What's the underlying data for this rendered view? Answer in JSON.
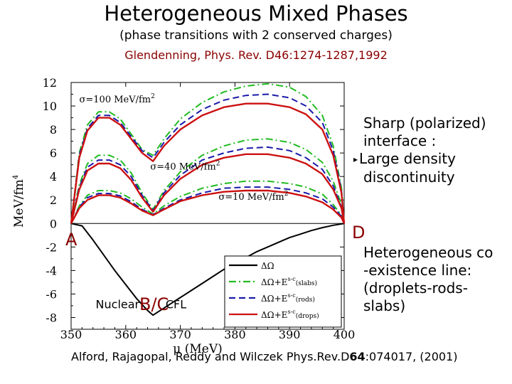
{
  "title": "Heterogeneous Mixed Phases",
  "subtitle": "(phase transitions with 2 conserved charges)",
  "citation_top": "Glendenning, Phys. Rev. D46:1274-1287,1992",
  "citation_bottom": {
    "authors": "Alford, Rajagopal, Reddy and Wilczek  Phys.Rev.D",
    "volume": "64",
    "pages": ":074017, (2001)"
  },
  "notes": {
    "sharp": [
      "Sharp (polarized)",
      "interface :",
      "Large density",
      "discontinuity"
    ],
    "hetero": [
      "Heterogeneous co",
      "-existence line:",
      "(droplets-rods-",
      "slabs)"
    ]
  },
  "point_labels": {
    "A": "A",
    "BC": "B/C",
    "D": "D"
  },
  "colors": {
    "black": "#000000",
    "green": "#22bb22",
    "blue": "#1a1aaa",
    "red": "#cc1111",
    "marker": "#8b0000"
  },
  "chart_data": {
    "type": "line",
    "xlabel": "μ (MeV)",
    "ylabel": "MeV/fm",
    "ylabel_power": "4",
    "xlim": [
      350,
      400
    ],
    "ylim": [
      -9,
      12
    ],
    "xticks": [
      350,
      360,
      370,
      380,
      390,
      400
    ],
    "yticks": [
      -8,
      -6,
      -4,
      -2,
      0,
      2,
      4,
      6,
      8,
      10,
      12
    ],
    "annotations": [
      {
        "text": "σ=100 MeV/fm",
        "sup": "2",
        "x": 351.5,
        "y": 10.3
      },
      {
        "text": "σ=40 MeV/fm",
        "sup": "2",
        "x": 364.5,
        "y": 4.6
      },
      {
        "text": "σ=10 MeV/fm",
        "sup": "2",
        "x": 377,
        "y": 2.0
      },
      {
        "text": "Nuclear",
        "sup": "",
        "x": 354.5,
        "y": -7.2
      },
      {
        "text": "CFL",
        "sup": "",
        "x": 367.3,
        "y": -7.2
      }
    ],
    "legend": {
      "position": "bottom-right",
      "entries": [
        {
          "label": "ΔΩ",
          "sup": "",
          "paren": "",
          "color": "#000000",
          "dash": "solid"
        },
        {
          "label": "ΔΩ+E",
          "sup": "s-c",
          "paren": "(slabs)",
          "color": "#22bb22",
          "dash": "dashdot"
        },
        {
          "label": "ΔΩ+E",
          "sup": "s-c",
          "paren": "(rods)",
          "color": "#1a1aaa",
          "dash": "dash"
        },
        {
          "label": "ΔΩ+E",
          "sup": "s-c",
          "paren": "(drops)",
          "color": "#cc1111",
          "dash": "solid"
        }
      ]
    },
    "series": [
      {
        "name": "ΔΩ",
        "color": "#000000",
        "dash": "solid",
        "width": 2,
        "x": [
          350,
          352,
          354,
          356,
          358,
          360,
          362,
          364,
          365,
          366,
          368,
          370,
          372,
          374,
          376,
          378,
          380,
          382,
          384,
          386,
          388,
          390,
          392,
          394,
          396,
          398,
          400
        ],
        "y": [
          0,
          -0.2,
          -1.4,
          -2.7,
          -4.0,
          -5.2,
          -6.4,
          -7.4,
          -7.8,
          -7.5,
          -6.9,
          -6.3,
          -5.7,
          -5.1,
          -4.5,
          -3.9,
          -3.4,
          -2.9,
          -2.4,
          -2.0,
          -1.6,
          -1.2,
          -0.9,
          -0.6,
          -0.35,
          -0.15,
          0
        ]
      },
      {
        "name": "σ=10 slabs",
        "color": "#22bb22",
        "dash": "dashdot",
        "width": 2,
        "x": [
          350,
          351.5,
          353,
          355,
          357,
          359,
          361,
          363,
          365,
          367,
          370,
          374,
          378,
          382,
          386,
          390,
          393,
          396,
          398,
          399.5,
          400
        ],
        "y": [
          0,
          1.5,
          2.4,
          2.8,
          2.8,
          2.6,
          2.1,
          1.4,
          0.8,
          1.5,
          2.3,
          3.0,
          3.4,
          3.6,
          3.6,
          3.4,
          3.1,
          2.5,
          1.6,
          0.7,
          0
        ]
      },
      {
        "name": "σ=10 rods",
        "color": "#1a1aaa",
        "dash": "dash",
        "width": 2,
        "x": [
          350,
          351.5,
          353,
          355,
          357,
          359,
          361,
          363,
          365,
          367,
          370,
          374,
          378,
          382,
          386,
          390,
          393,
          396,
          398,
          399.5,
          400
        ],
        "y": [
          0,
          1.4,
          2.2,
          2.55,
          2.55,
          2.35,
          1.85,
          1.2,
          0.75,
          1.3,
          2.0,
          2.6,
          3.0,
          3.1,
          3.1,
          2.9,
          2.6,
          2.1,
          1.4,
          0.6,
          0
        ]
      },
      {
        "name": "σ=10 drops",
        "color": "#cc1111",
        "dash": "solid",
        "width": 2.4,
        "x": [
          350,
          351.5,
          353,
          355,
          357,
          359,
          361,
          363,
          365,
          367,
          370,
          374,
          378,
          382,
          386,
          390,
          393,
          396,
          398,
          399.5,
          400
        ],
        "y": [
          0,
          1.3,
          2.0,
          2.4,
          2.4,
          2.2,
          1.7,
          1.1,
          0.7,
          1.2,
          1.9,
          2.4,
          2.7,
          2.8,
          2.8,
          2.6,
          2.3,
          1.8,
          1.2,
          0.5,
          0
        ]
      },
      {
        "name": "σ=40 slabs",
        "color": "#22bb22",
        "dash": "dashdot",
        "width": 2,
        "x": [
          350,
          351.5,
          353,
          355,
          357,
          359,
          361,
          363,
          365,
          367,
          370,
          374,
          378,
          382,
          386,
          390,
          393,
          396,
          398,
          399.5,
          400
        ],
        "y": [
          0,
          3.3,
          5.1,
          5.8,
          5.8,
          5.4,
          4.3,
          2.6,
          1.2,
          2.8,
          4.4,
          5.8,
          6.6,
          7.1,
          7.2,
          6.9,
          6.3,
          5.2,
          3.6,
          1.6,
          0
        ]
      },
      {
        "name": "σ=40 rods",
        "color": "#1a1aaa",
        "dash": "dash",
        "width": 2,
        "x": [
          350,
          351.5,
          353,
          355,
          357,
          359,
          361,
          363,
          365,
          367,
          370,
          374,
          378,
          382,
          386,
          390,
          393,
          396,
          398,
          399.5,
          400
        ],
        "y": [
          0,
          3.1,
          4.8,
          5.4,
          5.4,
          5.0,
          4.0,
          2.4,
          1.1,
          2.6,
          4.1,
          5.4,
          6.0,
          6.4,
          6.5,
          6.2,
          5.6,
          4.6,
          3.2,
          1.4,
          0
        ]
      },
      {
        "name": "σ=40 drops",
        "color": "#cc1111",
        "dash": "solid",
        "width": 2.4,
        "x": [
          350,
          351.5,
          353,
          355,
          357,
          359,
          361,
          363,
          365,
          367,
          370,
          374,
          378,
          382,
          386,
          390,
          393,
          396,
          398,
          399.5,
          400
        ],
        "y": [
          0,
          2.9,
          4.5,
          5.1,
          5.1,
          4.7,
          3.7,
          2.2,
          1.0,
          2.4,
          3.8,
          5.0,
          5.6,
          5.9,
          5.9,
          5.6,
          5.1,
          4.2,
          2.9,
          1.3,
          0
        ]
      },
      {
        "name": "σ=100 slabs",
        "color": "#22bb22",
        "dash": "dashdot",
        "width": 2,
        "x": [
          350,
          351.5,
          353,
          355,
          357,
          359,
          361,
          363,
          365,
          367,
          370,
          374,
          378,
          382,
          386,
          390,
          393,
          396,
          398,
          399.5,
          400
        ],
        "y": [
          0,
          6.0,
          8.4,
          9.5,
          9.5,
          8.9,
          7.6,
          6.3,
          5.8,
          7.2,
          8.9,
          10.3,
          11.2,
          11.7,
          11.9,
          11.6,
          10.8,
          9.2,
          6.6,
          3.0,
          0
        ]
      },
      {
        "name": "σ=100 rods",
        "color": "#1a1aaa",
        "dash": "dash",
        "width": 2,
        "x": [
          350,
          351.5,
          353,
          355,
          357,
          359,
          361,
          363,
          365,
          367,
          370,
          374,
          378,
          382,
          386,
          390,
          393,
          396,
          398,
          399.5,
          400
        ],
        "y": [
          0,
          5.8,
          8.1,
          9.2,
          9.2,
          8.6,
          7.4,
          6.2,
          5.6,
          6.9,
          8.4,
          9.7,
          10.5,
          10.9,
          11.0,
          10.7,
          10.0,
          8.6,
          6.2,
          2.8,
          0
        ]
      },
      {
        "name": "σ=100 drops",
        "color": "#cc1111",
        "dash": "solid",
        "width": 2.4,
        "x": [
          350,
          351.5,
          353,
          355,
          357,
          359,
          361,
          363,
          365,
          367,
          370,
          374,
          378,
          382,
          386,
          390,
          393,
          396,
          398,
          399.5,
          400
        ],
        "y": [
          0,
          5.6,
          7.9,
          9.0,
          9.0,
          8.4,
          7.2,
          6.0,
          5.3,
          6.6,
          8.0,
          9.2,
          9.9,
          10.2,
          10.2,
          9.9,
          9.3,
          8.0,
          5.8,
          2.6,
          0
        ]
      }
    ]
  }
}
